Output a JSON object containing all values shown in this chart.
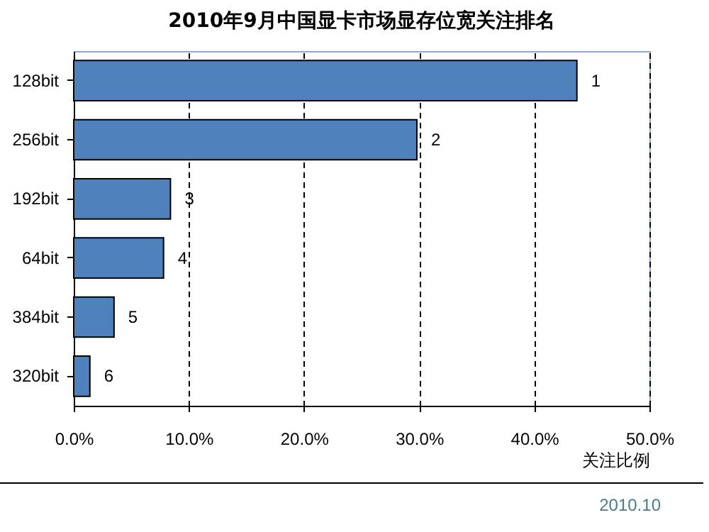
{
  "chart_data": {
    "type": "bar",
    "orientation": "horizontal",
    "title": "2010年9月中国显卡市场显存位宽关注排名",
    "xlabel": "关注比例",
    "categories": [
      "128bit",
      "256bit",
      "192bit",
      "64bit",
      "384bit",
      "320bit"
    ],
    "values": [
      43.7,
      29.8,
      8.4,
      7.8,
      3.5,
      1.4
    ],
    "color": "#4f81bd",
    "xlim": [
      0,
      50
    ],
    "xticks": [
      {
        "value": 0,
        "label": "0.0%"
      },
      {
        "value": 10,
        "label": "10.0%"
      },
      {
        "value": 20,
        "label": "20.0%"
      },
      {
        "value": 30,
        "label": "30.0%"
      },
      {
        "value": 40,
        "label": "40.0%"
      },
      {
        "value": 50,
        "label": "50.0%"
      }
    ],
    "grid": "x",
    "line_style": "dashed",
    "annotations": [
      {
        "text": "1",
        "x": 43.7,
        "y": "128bit"
      },
      {
        "text": "2",
        "x": 29.8,
        "y": "256bit"
      },
      {
        "text": "3",
        "x": 8.4,
        "y": "192bit"
      },
      {
        "text": "4",
        "x": 7.8,
        "y": "64bit"
      },
      {
        "text": "5",
        "x": 3.5,
        "y": "384bit"
      },
      {
        "text": "6",
        "x": 1.4,
        "y": "320bit"
      },
      "2010.10"
    ]
  }
}
